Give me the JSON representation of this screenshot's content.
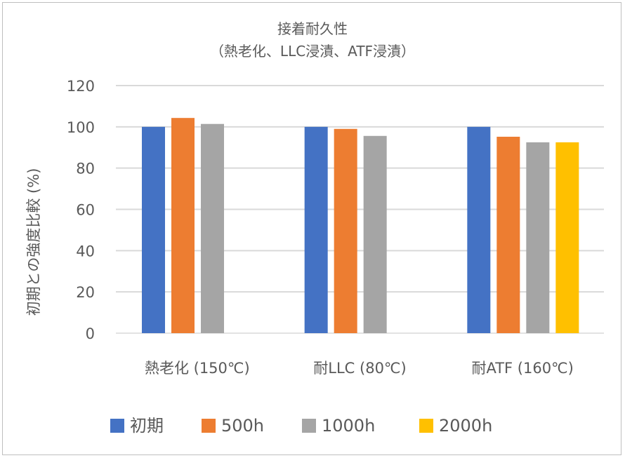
{
  "chart_data": {
    "type": "bar",
    "title": "接着耐久性",
    "subtitle": "（熱老化、LLC浸漬、ATF浸漬）",
    "xlabel": "",
    "ylabel": "初期との強度比較 (%)",
    "ylim": [
      0,
      120
    ],
    "yticks": [
      0,
      20,
      40,
      60,
      80,
      100,
      120
    ],
    "grid": true,
    "legend_position": "bottom",
    "categories": [
      "熱老化 (150℃)",
      "耐LLC (80℃)",
      "耐ATF (160℃)"
    ],
    "series": [
      {
        "name": "初期",
        "color": "#4472C4",
        "values": [
          100,
          100,
          100
        ]
      },
      {
        "name": "500h",
        "color": "#ED7D31",
        "values": [
          104.3,
          99.0,
          95.2
        ]
      },
      {
        "name": "1000h",
        "color": "#A5A5A5",
        "values": [
          101.4,
          95.6,
          92.5
        ]
      },
      {
        "name": "2000h",
        "color": "#FFC000",
        "values": [
          null,
          null,
          92.5
        ]
      }
    ]
  }
}
